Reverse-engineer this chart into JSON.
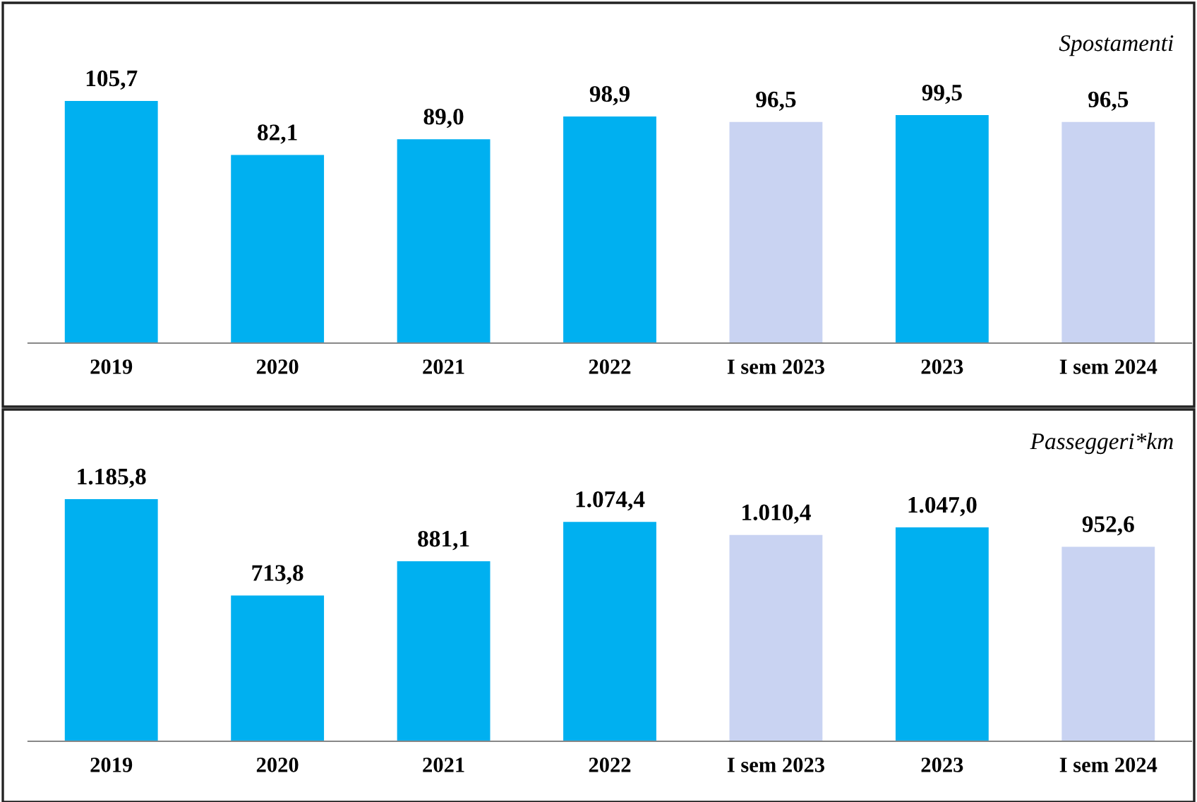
{
  "chart_data": [
    {
      "type": "bar",
      "title": "Spostamenti",
      "categories": [
        "2019",
        "2020",
        "2021",
        "2022",
        "I sem 2023",
        "2023",
        "I sem 2024"
      ],
      "values": [
        105.7,
        82.1,
        89.0,
        98.9,
        96.5,
        99.5,
        96.5
      ],
      "value_labels": [
        "105,7",
        "82,1",
        "89,0",
        "98,9",
        "96,5",
        "99,5",
        "96,5"
      ],
      "colors": [
        "#00b0f0",
        "#00b0f0",
        "#00b0f0",
        "#00b0f0",
        "#c9d3f2",
        "#00b0f0",
        "#c9d3f2"
      ],
      "tick_labels": "x",
      "grid": false,
      "legend": false
    },
    {
      "type": "bar",
      "title": "Passeggeri*km",
      "categories": [
        "2019",
        "2020",
        "2021",
        "2022",
        "I sem 2023",
        "2023",
        "I sem 2024"
      ],
      "values": [
        1185.8,
        713.8,
        881.1,
        1074.4,
        1010.4,
        1047.0,
        952.6
      ],
      "value_labels": [
        "1.185,8",
        "713,8",
        "881,1",
        "1.074,4",
        "1.010,4",
        "1.047,0",
        "952,6"
      ],
      "colors": [
        "#00b0f0",
        "#00b0f0",
        "#00b0f0",
        "#00b0f0",
        "#c9d3f2",
        "#00b0f0",
        "#c9d3f2"
      ],
      "tick_labels": "x",
      "grid": false,
      "legend": false
    }
  ]
}
